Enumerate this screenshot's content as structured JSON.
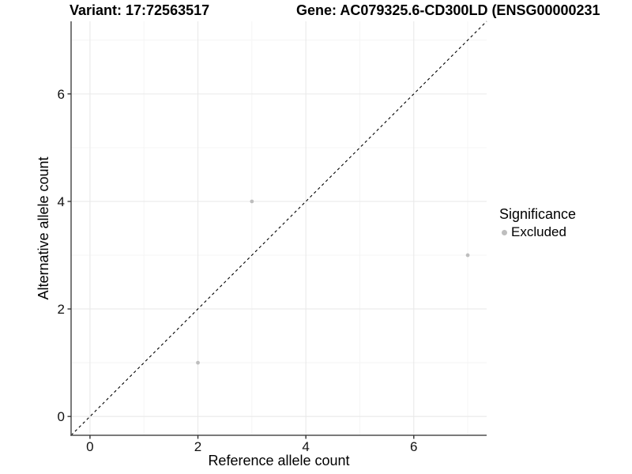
{
  "title": {
    "variant": "Variant: 17:72563517",
    "gene": "Gene: AC079325.6-CD300LD (ENSG00000231"
  },
  "chart_data": {
    "type": "scatter",
    "title_left": "Variant: 17:72563517",
    "title_right": "Gene: AC079325.6-CD300LD (ENSG00000231",
    "xlabel": "Reference allele count",
    "ylabel": "Alternative allele count",
    "xlim": [
      -0.35,
      7.35
    ],
    "ylim": [
      -0.35,
      7.35
    ],
    "xticks": [
      0,
      2,
      4,
      6
    ],
    "yticks": [
      0,
      2,
      4,
      6
    ],
    "xticks_minor": [
      1,
      3,
      5,
      7
    ],
    "yticks_minor": [
      1,
      3,
      5,
      7
    ],
    "grid": "major+minor",
    "identity_line": {
      "type": "dashed",
      "equation": "y = x"
    },
    "series": [
      {
        "name": "Excluded",
        "color": "#bebebe",
        "points": [
          {
            "x": 2,
            "y": 1
          },
          {
            "x": 3,
            "y": 4
          },
          {
            "x": 7,
            "y": 3
          }
        ]
      }
    ],
    "legend": {
      "title": "Significance",
      "position": "right",
      "items": [
        {
          "label": "Excluded",
          "color": "#bebebe"
        }
      ]
    },
    "colors": {
      "point": "#bebebe",
      "grid_major": "#e9e9e9",
      "grid_minor": "#f4f4f4",
      "axis_line": "#4f4f4f",
      "tick_mark": "#333333",
      "identity_line": "#000000",
      "text": "#000000"
    }
  }
}
